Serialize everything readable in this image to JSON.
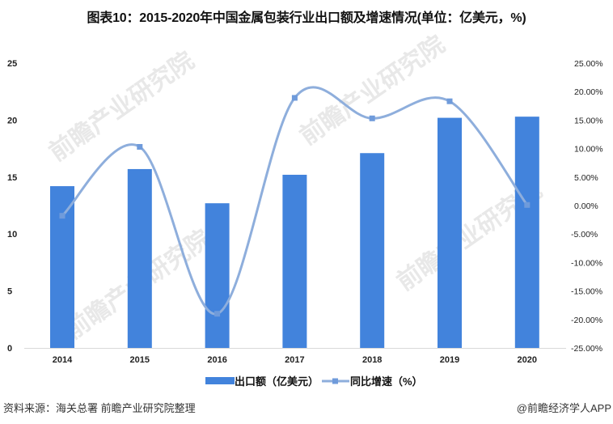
{
  "title": "图表10：2015-2020年中国金属包装行业出口额及增速情况(单位：亿美元，%)",
  "source": "资料来源：海关总署 前瞻产业研究院整理",
  "credit": "@前瞻经济学人APP",
  "watermark": "前瞻产业研究院",
  "colors": {
    "bar": "#4283DC",
    "line": "#8EAEDC",
    "marker": "#6F9BDB",
    "axis": "#d9d9d9"
  },
  "chart_data": {
    "type": "bar+line",
    "title": "图表10：2015-2020年中国金属包装行业出口额及增速情况(单位：亿美元，%)",
    "categories": [
      "2014",
      "2015",
      "2016",
      "2017",
      "2018",
      "2019",
      "2020"
    ],
    "series": [
      {
        "name": "出口额（亿美元）",
        "type": "bar",
        "axis": "left",
        "values": [
          14.2,
          15.7,
          12.7,
          15.2,
          17.1,
          20.2,
          20.3
        ]
      },
      {
        "name": "同比增速（%）",
        "type": "line",
        "axis": "right",
        "smooth": true,
        "values": [
          -1.8,
          10.3,
          -19.0,
          18.9,
          15.3,
          18.3,
          0.1
        ]
      }
    ],
    "left_axis": {
      "ylim": [
        0,
        25
      ],
      "ticks": [
        "0",
        "5",
        "10",
        "15",
        "20",
        "25"
      ]
    },
    "right_axis": {
      "ylim": [
        -25,
        25
      ],
      "ticks": [
        "-25.00%",
        "-20.00%",
        "-15.00%",
        "-10.00%",
        "-5.00%",
        "0.00%",
        "5.00%",
        "10.00%",
        "15.00%",
        "20.00%",
        "25.00%"
      ]
    },
    "xlabel": "",
    "ylabel": "",
    "grid": false,
    "legend_position": "bottom"
  }
}
